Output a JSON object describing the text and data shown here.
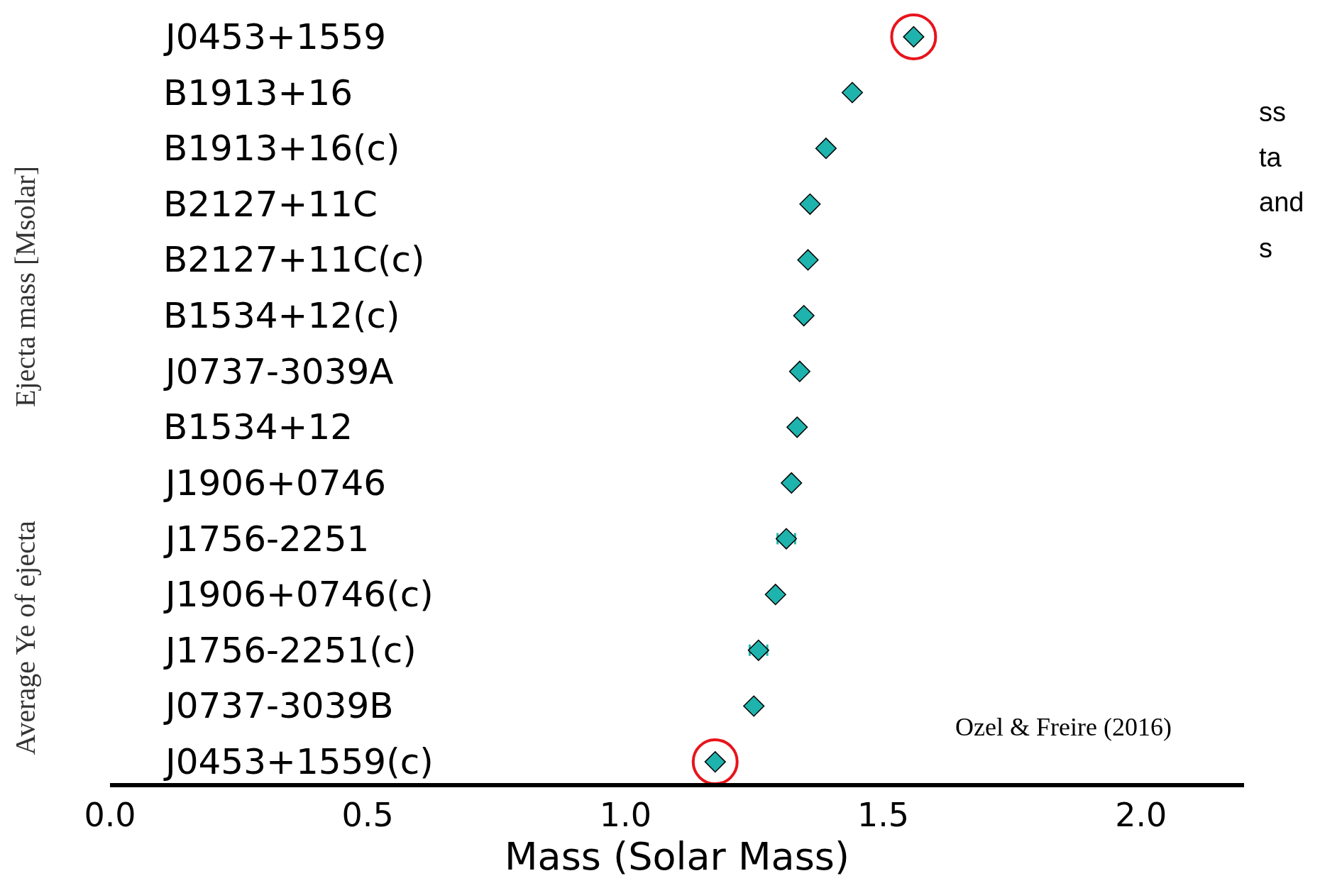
{
  "chart_data": {
    "type": "scatter",
    "orientation": "horizontal",
    "categories": [
      "J0453+1559",
      "B1913+16",
      "B1913+16(c)",
      "B2127+11C",
      "B2127+11C(c)",
      "B1534+12(c)",
      "J0737-3039A",
      "B1534+12",
      "J1906+0746",
      "J1756-2251",
      "J1906+0746(c)",
      "J1756-2251(c)",
      "J0737-3039B",
      "J0453+1559(c)"
    ],
    "series": [
      {
        "color": "#1fb3ad",
        "values": [
          1.559,
          1.44,
          1.389,
          1.358,
          1.354,
          1.346,
          1.338,
          1.333,
          1.322,
          1.312,
          1.291,
          1.258,
          1.249,
          1.174
        ],
        "errors": [
          null,
          null,
          null,
          null,
          null,
          null,
          null,
          null,
          null,
          0.017,
          null,
          0.017,
          null,
          null
        ]
      },
      {
        "color": "#e8141c",
        "marker": "circle",
        "values": [
          1.559,
          null,
          null,
          null,
          null,
          null,
          null,
          null,
          null,
          null,
          null,
          null,
          null,
          1.174
        ]
      }
    ],
    "xlim": [
      0,
      2.2
    ],
    "xticks": [
      {
        "value": 0,
        "label": "0.0"
      },
      {
        "value": 0.5,
        "label": "0.5"
      },
      {
        "value": 1,
        "label": "1.0"
      },
      {
        "value": 1.5,
        "label": "1.5"
      },
      {
        "value": 2,
        "label": "2.0"
      }
    ],
    "xlabel": "Mass (Solar Mass)",
    "marker": "diamond",
    "annotations": [
      "Ozel & Freire (2016)",
      "Ejecta mass [Msolar]",
      "Average Ye of ejecta",
      "ss",
      "ta",
      "and",
      "s"
    ]
  }
}
